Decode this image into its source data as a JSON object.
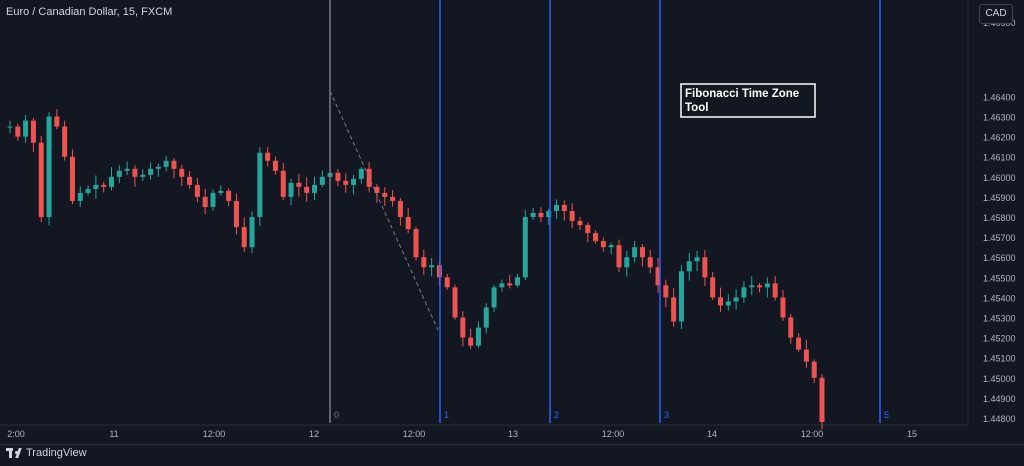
{
  "header": {
    "symbol": "Euro / Canadian Dollar, 15, FXCM"
  },
  "currency_button": "CAD",
  "footer": {
    "brand": "TradingView"
  },
  "annotation": {
    "line1": "Fibonacci Time Zone",
    "line2": "Tool"
  },
  "colors": {
    "background": "#131722",
    "grid": "#1e222d",
    "up": "#26a69a",
    "down": "#ef5350",
    "fib_line": "#2962ff",
    "zero_line": "#787b86",
    "text": "#d1d4dc",
    "axis_text": "#b2b5be"
  },
  "chart_data": {
    "type": "candlestick",
    "title": "Euro / Canadian Dollar, 15, FXCM",
    "ylim": [
      1.4478,
      1.4687
    ],
    "y_ticks": [
      "1.46600",
      "1.46400",
      "1.46300",
      "1.46200",
      "1.46100",
      "1.46000",
      "1.45900",
      "1.45800",
      "1.45700",
      "1.45600",
      "1.45500",
      "1.45400",
      "1.45300",
      "1.45200",
      "1.45100",
      "1.45000",
      "1.44900",
      "1.44800"
    ],
    "x_ticks": [
      "2:00",
      "11",
      "12:00",
      "12",
      "12:00",
      "13",
      "12:00",
      "14",
      "12:00",
      "15"
    ],
    "series": [
      {
        "values": [
          1.4625,
          1.462,
          1.4628,
          1.4617,
          1.458,
          1.463,
          1.4625,
          1.461,
          1.4588,
          1.4592,
          1.4594,
          1.4596,
          1.4595,
          1.46,
          1.4603,
          1.4604,
          1.46,
          1.4601,
          1.4604,
          1.4605,
          1.4608,
          1.4604,
          1.46,
          1.4596,
          1.459,
          1.4585,
          1.4592,
          1.4593,
          1.4588,
          1.4575,
          1.4565,
          1.458,
          1.4612,
          1.4608,
          1.4603,
          1.459,
          1.4597,
          1.4595,
          1.4592,
          1.4596,
          1.46,
          1.4602,
          1.4598,
          1.4596,
          1.4599,
          1.4604,
          1.4595,
          1.4592,
          1.459,
          1.4588,
          1.458,
          1.4574,
          1.456,
          1.4555,
          1.4556,
          1.455,
          1.4545,
          1.453,
          1.452,
          1.4516,
          1.4525,
          1.4535,
          1.4545,
          1.4547,
          1.4546,
          1.455,
          1.458,
          1.4582,
          1.458,
          1.4583,
          1.4586,
          1.4583,
          1.4578,
          1.4576,
          1.4572,
          1.4568,
          1.4565,
          1.4566,
          1.4555,
          1.456,
          1.4565,
          1.456,
          1.4555,
          1.4546,
          1.454,
          1.4528,
          1.4553,
          1.4558,
          1.456,
          1.455,
          1.454,
          1.4536,
          1.4538,
          1.454,
          1.4545,
          1.4546,
          1.4545,
          1.4547,
          1.454,
          1.453,
          1.452,
          1.4514,
          1.4508,
          1.45,
          1.4478
        ]
      }
    ],
    "fib_zones": [
      "0",
      "1",
      "2",
      "3",
      "5"
    ],
    "grid": false
  }
}
